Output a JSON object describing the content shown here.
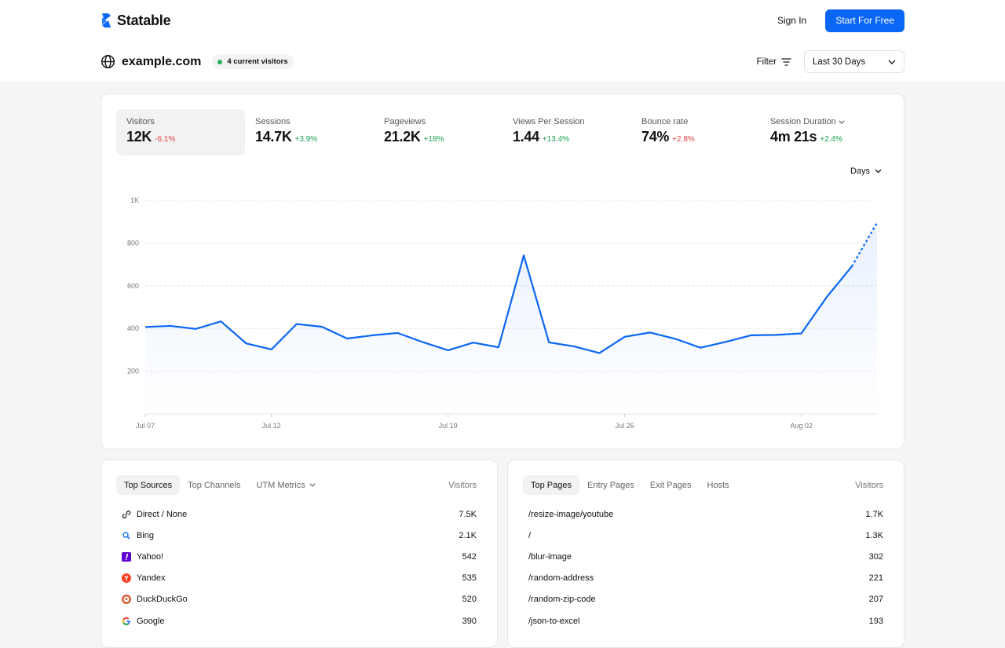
{
  "brand": {
    "name": "Statable"
  },
  "nav": {
    "signin_label": "Sign In",
    "cta_label": "Start For Free"
  },
  "site": {
    "name": "example.com",
    "live_label": "4 current visitors"
  },
  "controls": {
    "filter_label": "Filter",
    "range_label": "Last 30 Days",
    "interval_label": "Days"
  },
  "metrics": [
    {
      "label": "Visitors",
      "value": "12K",
      "change": "-6.1%",
      "trend": "down"
    },
    {
      "label": "Sessions",
      "value": "14.7K",
      "change": "+3.9%",
      "trend": "up"
    },
    {
      "label": "Pageviews",
      "value": "21.2K",
      "change": "+18%",
      "trend": "up"
    },
    {
      "label": "Views Per Session",
      "value": "1.44",
      "change": "+13.4%",
      "trend": "up"
    },
    {
      "label": "Bounce rate",
      "value": "74%",
      "change": "+2.8%",
      "trend": "up"
    },
    {
      "label": "Session Duration",
      "value": "4m 21s",
      "change": "+2.4%",
      "trend": "up"
    }
  ],
  "chart_data": {
    "type": "line",
    "yticks": [
      {
        "value": 200,
        "label": "200"
      },
      {
        "value": 400,
        "label": "400"
      },
      {
        "value": 600,
        "label": "600"
      },
      {
        "value": 800,
        "label": "800"
      },
      {
        "value": 1000,
        "label": "1K"
      }
    ],
    "ylim": [
      0,
      1000
    ],
    "grid": true,
    "xticks": [
      {
        "index": 0,
        "label": "Jul 07"
      },
      {
        "index": 5,
        "label": "Jul 12"
      },
      {
        "index": 12,
        "label": "Jul 19"
      },
      {
        "index": 19,
        "label": "Jul 26"
      },
      {
        "index": 26,
        "label": "Aug 02"
      }
    ],
    "x": [
      "Jul 07",
      "Jul 08",
      "Jul 09",
      "Jul 10",
      "Jul 11",
      "Jul 12",
      "Jul 13",
      "Jul 14",
      "Jul 15",
      "Jul 16",
      "Jul 17",
      "Jul 18",
      "Jul 19",
      "Jul 20",
      "Jul 21",
      "Jul 22",
      "Jul 23",
      "Jul 24",
      "Jul 25",
      "Jul 26",
      "Jul 27",
      "Jul 28",
      "Jul 29",
      "Jul 30",
      "Jul 31",
      "Aug 01",
      "Aug 02",
      "Aug 03",
      "Aug 04",
      "Aug 05"
    ],
    "values": [
      407,
      412,
      398,
      433,
      330,
      302,
      421,
      408,
      353,
      368,
      379,
      336,
      298,
      334,
      312,
      742,
      335,
      316,
      285,
      361,
      381,
      352,
      310,
      337,
      368,
      370,
      377,
      546,
      690,
      895
    ],
    "projected_from_index": 28,
    "color": "#0a66f5"
  },
  "sources": {
    "tabs": [
      "Top Sources",
      "Top Channels",
      "UTM Metrics"
    ],
    "column": "Visitors",
    "rows": [
      {
        "name": "Direct / None",
        "value": "7.5K",
        "icon": "link-icon"
      },
      {
        "name": "Bing",
        "value": "2.1K",
        "icon": "bing-icon"
      },
      {
        "name": "Yahoo!",
        "value": "542",
        "icon": "yahoo-icon"
      },
      {
        "name": "Yandex",
        "value": "535",
        "icon": "yandex-icon"
      },
      {
        "name": "DuckDuckGo",
        "value": "520",
        "icon": "duckduckgo-icon"
      },
      {
        "name": "Google",
        "value": "390",
        "icon": "google-icon"
      }
    ]
  },
  "pages": {
    "tabs": [
      "Top Pages",
      "Entry Pages",
      "Exit Pages",
      "Hosts"
    ],
    "column": "Visitors",
    "rows": [
      {
        "name": "/resize-image/youtube",
        "value": "1.7K"
      },
      {
        "name": "/",
        "value": "1.3K"
      },
      {
        "name": "/blur-image",
        "value": "302"
      },
      {
        "name": "/random-address",
        "value": "221"
      },
      {
        "name": "/random-zip-code",
        "value": "207"
      },
      {
        "name": "/json-to-excel",
        "value": "193"
      }
    ]
  },
  "colors": {
    "accent": "#0a66f5",
    "positive": "#1a9f4d",
    "negative": "#e0413c",
    "live": "#22b35a"
  }
}
